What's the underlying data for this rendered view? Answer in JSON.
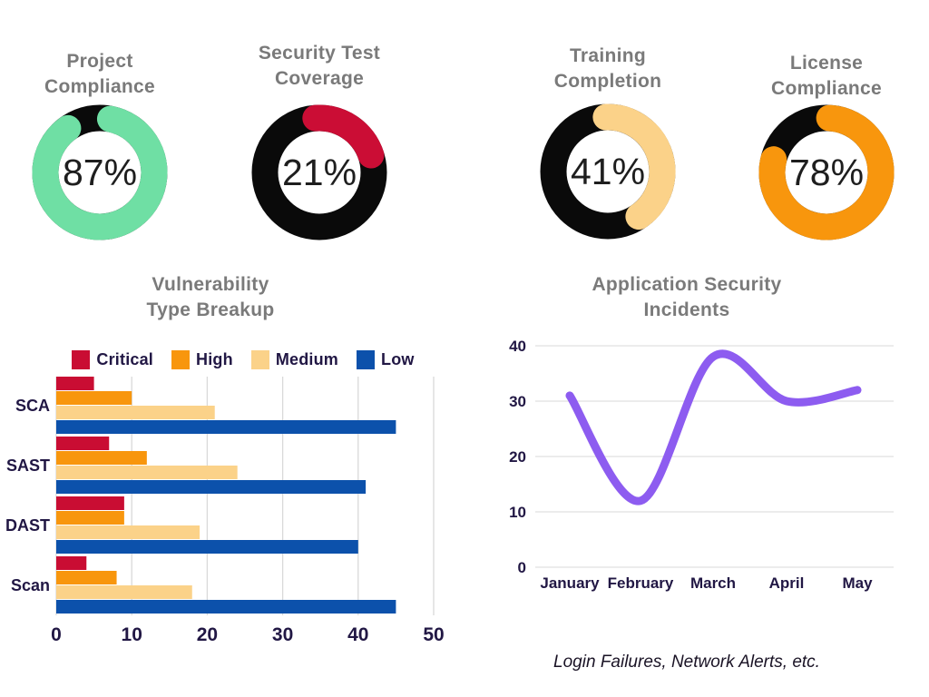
{
  "colors": {
    "background": "#ffffff",
    "title_gray": "#7a7a7a",
    "text_navy": "#211744",
    "donut_track_black": "#0a0a0a",
    "grid_gray_bar": "#d9d9d9",
    "grid_gray_line": "#e6e6e6"
  },
  "chart_data": [
    {
      "type": "donut",
      "title": "Project Compliance",
      "title_line1": "Project",
      "title_line2": "Compliance",
      "value": 87,
      "label": "87%",
      "arc_color": "#6fdfa4",
      "track_color": "#0a0a0a",
      "start_angle": 11
    },
    {
      "type": "donut",
      "title": "Security Test Coverage",
      "title_line1": "Security Test",
      "title_line2": "Coverage",
      "value": 21,
      "label": "21%",
      "arc_color": "#cb0d35",
      "track_color": "#0a0a0a",
      "start_angle": -4
    },
    {
      "type": "donut",
      "title": "Training Completion",
      "title_line1": "Training",
      "title_line2": "Completion",
      "value": 41,
      "label": "41%",
      "arc_color": "#fbd289",
      "track_color": "#0a0a0a",
      "start_angle": -2
    },
    {
      "type": "donut",
      "title": "License Compliance",
      "title_line1": "License",
      "title_line2": "Compliance",
      "value": 78,
      "label": "78%",
      "arc_color": "#f8960d",
      "track_color": "#0a0a0a",
      "start_angle": 3
    },
    {
      "type": "bar",
      "orientation": "horizontal",
      "title": "Vulnerability Type Breakup",
      "title_line1": "Vulnerability",
      "title_line2": "Type Breakup",
      "categories": [
        "SCA",
        "SAST",
        "DAST",
        "Scan"
      ],
      "series": [
        {
          "name": "Critical",
          "color": "#c90d33",
          "values": [
            5,
            7,
            9,
            4
          ]
        },
        {
          "name": "High",
          "color": "#f8960d",
          "values": [
            10,
            12,
            9,
            8
          ]
        },
        {
          "name": "Medium",
          "color": "#fbd289",
          "values": [
            21,
            24,
            19,
            18
          ]
        },
        {
          "name": "Low",
          "color": "#0c51ab",
          "values": [
            45,
            41,
            40,
            45
          ]
        }
      ],
      "xlim": [
        0,
        50
      ],
      "xticks": [
        0,
        10,
        20,
        30,
        40,
        50
      ],
      "grid": "vertical",
      "legend_position": "top"
    },
    {
      "type": "line",
      "title": "Application Security Incidents",
      "title_line1": "Application Security",
      "title_line2": "Incidents",
      "x": [
        "January",
        "February",
        "March",
        "April",
        "May"
      ],
      "values": [
        31,
        12,
        38,
        30,
        32
      ],
      "ylim": [
        0,
        40
      ],
      "yticks": [
        0,
        10,
        20,
        30,
        40
      ],
      "line_color": "#8d5cf0",
      "grid": "horizontal",
      "legend_position": "none",
      "caption": "Login Failures, Network Alerts, etc."
    }
  ]
}
